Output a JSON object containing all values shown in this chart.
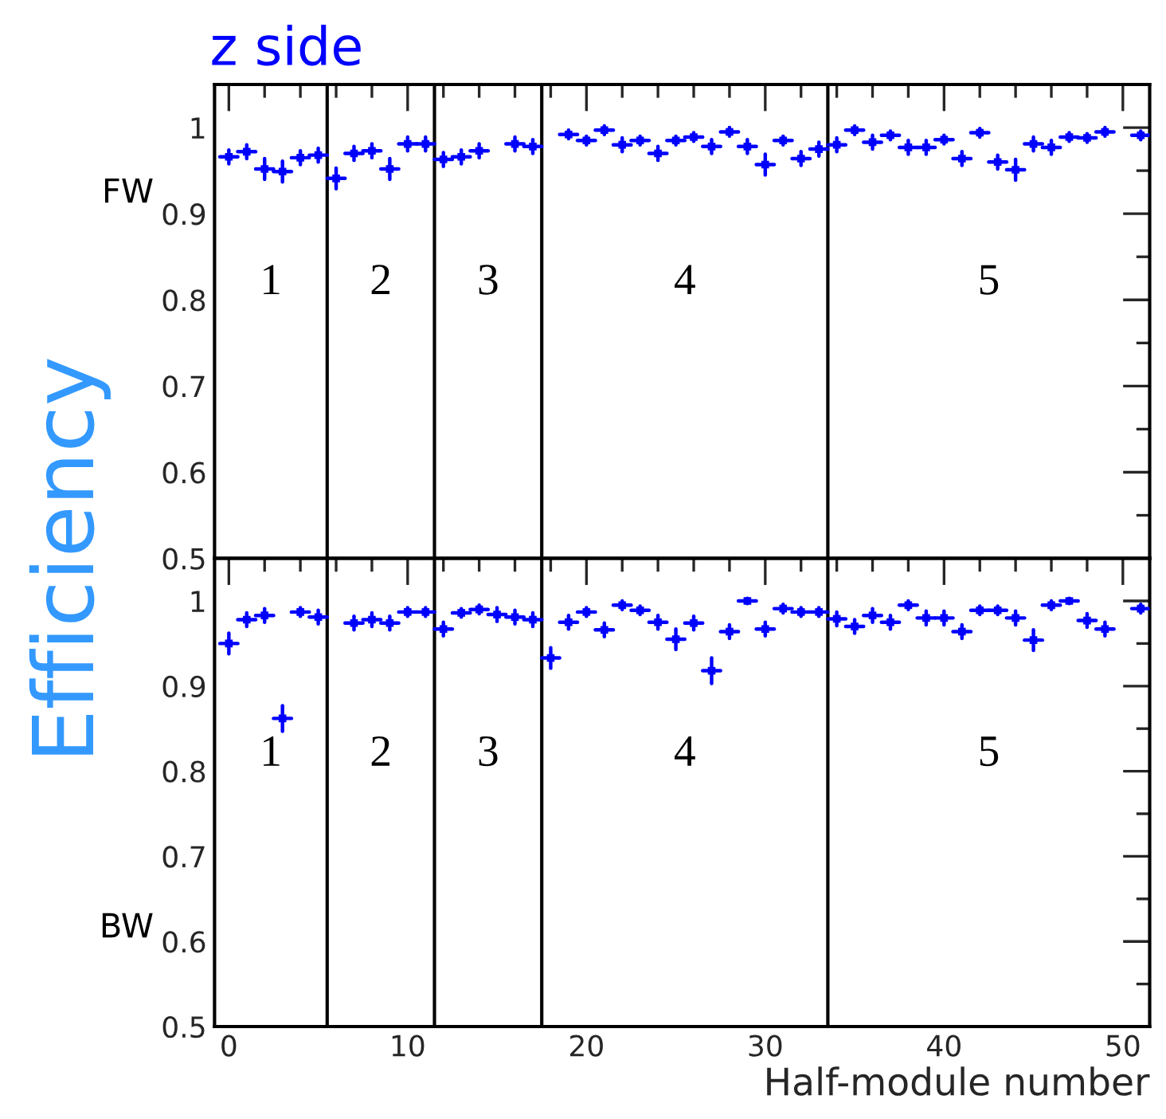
{
  "chart_data": [
    {
      "type": "scatter",
      "title": "z side",
      "ylabel": "Efficiency",
      "marker": "square",
      "grid": false,
      "tick_labels": "y",
      "xlim": [
        -0.8,
        51.5
      ],
      "ylim": [
        0.5,
        1.05
      ],
      "xticks": [
        0,
        {
          "value": 2,
          "label": null
        },
        {
          "value": 4,
          "label": null
        },
        {
          "value": 6,
          "label": null
        },
        {
          "value": 8,
          "label": null
        },
        10,
        {
          "value": 12,
          "label": null
        },
        {
          "value": 14,
          "label": null
        },
        {
          "value": 16,
          "label": null
        },
        {
          "value": 18,
          "label": null
        },
        20,
        {
          "value": 22,
          "label": null
        },
        {
          "value": 24,
          "label": null
        },
        {
          "value": 26,
          "label": null
        },
        {
          "value": 28,
          "label": null
        },
        30,
        {
          "value": 32,
          "label": null
        },
        {
          "value": 34,
          "label": null
        },
        {
          "value": 36,
          "label": null
        },
        {
          "value": 38,
          "label": null
        },
        40,
        {
          "value": 42,
          "label": null
        },
        {
          "value": 44,
          "label": null
        },
        {
          "value": 46,
          "label": null
        },
        {
          "value": 48,
          "label": null
        },
        50
      ],
      "yticks": [
        0.5,
        {
          "value": 0.55,
          "label": null
        },
        0.6,
        {
          "value": 0.65,
          "label": null
        },
        0.7,
        {
          "value": 0.75,
          "label": null
        },
        0.8,
        {
          "value": 0.85,
          "label": null
        },
        0.9,
        {
          "value": 0.95,
          "label": null
        },
        1
      ],
      "x": [
        0,
        1,
        2,
        3,
        4,
        5,
        6,
        7,
        8,
        9,
        10,
        11,
        12,
        13,
        14,
        15,
        16,
        17,
        18,
        19,
        20,
        21,
        22,
        23,
        24,
        25,
        26,
        27,
        28,
        29,
        30,
        31,
        32,
        33,
        34,
        35,
        36,
        37,
        38,
        39,
        40,
        41,
        42,
        43,
        44,
        45,
        46,
        47,
        48,
        49,
        50,
        51
      ],
      "series": [
        {
          "color": "#0000ff",
          "values": [
            0.966,
            0.972,
            0.952,
            0.949,
            0.965,
            0.968,
            0.941,
            0.97,
            0.973,
            0.952,
            0.981,
            0.981,
            0.963,
            0.966,
            0.973,
            null,
            0.981,
            0.978,
            null,
            0.992,
            0.985,
            0.997,
            0.98,
            0.985,
            0.97,
            0.985,
            0.989,
            0.978,
            0.995,
            0.978,
            0.957,
            0.985,
            0.964,
            0.975,
            0.98,
            0.997,
            0.983,
            0.991,
            0.977,
            0.977,
            0.986,
            0.964,
            0.994,
            0.96,
            0.951,
            0.981,
            0.977,
            0.989,
            0.988,
            0.995,
            null,
            0.991
          ],
          "errors": [
            0.008,
            0.008,
            0.012,
            0.012,
            0.008,
            0.008,
            0.012,
            0.008,
            0.008,
            0.012,
            0.008,
            0.008,
            0.008,
            0.008,
            0.008,
            null,
            0.008,
            0.008,
            null,
            0.005,
            0.005,
            0.005,
            0.008,
            0.005,
            0.008,
            0.005,
            0.005,
            0.008,
            0.005,
            0.008,
            0.012,
            0.005,
            0.008,
            0.008,
            0.008,
            0.005,
            0.008,
            0.005,
            0.008,
            0.008,
            0.005,
            0.008,
            0.005,
            0.008,
            0.012,
            0.008,
            0.008,
            0.005,
            0.005,
            0.005,
            null,
            0.005
          ],
          "xerrors": [
            0.5,
            0.5,
            0.5,
            0.5,
            0.5,
            0.5,
            0.5,
            0.5,
            0.5,
            0.5,
            0.5,
            0.5,
            0.5,
            0.5,
            0.5,
            null,
            0.5,
            0.5,
            null,
            0.5,
            0.5,
            0.5,
            0.5,
            0.5,
            0.5,
            0.5,
            0.5,
            0.5,
            0.5,
            0.5,
            0.5,
            0.5,
            0.5,
            0.5,
            0.5,
            0.5,
            0.5,
            0.5,
            0.5,
            0.5,
            0.5,
            0.5,
            0.5,
            0.5,
            0.5,
            0.5,
            0.5,
            0.5,
            0.5,
            0.5,
            null,
            0.5
          ]
        }
      ],
      "ref_lines": [
        {
          "axis": "x",
          "value": 5.5,
          "color": "#000000"
        },
        {
          "axis": "x",
          "value": 11.5,
          "color": "#000000"
        },
        {
          "axis": "x",
          "value": 17.5,
          "color": "#000000"
        },
        {
          "axis": "x",
          "value": 33.5,
          "color": "#000000"
        }
      ],
      "annotations": [
        "FW",
        "1",
        "2",
        "3",
        "4",
        "5"
      ]
    },
    {
      "type": "scatter",
      "xlabel": "Half-module number",
      "marker": "square",
      "grid": false,
      "xlim": [
        -0.8,
        51.5
      ],
      "ylim": [
        0.5,
        1.05
      ],
      "xticks": [
        0,
        {
          "value": 2,
          "label": null
        },
        {
          "value": 4,
          "label": null
        },
        {
          "value": 6,
          "label": null
        },
        {
          "value": 8,
          "label": null
        },
        10,
        {
          "value": 12,
          "label": null
        },
        {
          "value": 14,
          "label": null
        },
        {
          "value": 16,
          "label": null
        },
        {
          "value": 18,
          "label": null
        },
        20,
        {
          "value": 22,
          "label": null
        },
        {
          "value": 24,
          "label": null
        },
        {
          "value": 26,
          "label": null
        },
        {
          "value": 28,
          "label": null
        },
        30,
        {
          "value": 32,
          "label": null
        },
        {
          "value": 34,
          "label": null
        },
        {
          "value": 36,
          "label": null
        },
        {
          "value": 38,
          "label": null
        },
        40,
        {
          "value": 42,
          "label": null
        },
        {
          "value": 44,
          "label": null
        },
        {
          "value": 46,
          "label": null
        },
        {
          "value": 48,
          "label": null
        },
        50
      ],
      "yticks": [
        0.5,
        {
          "value": 0.55,
          "label": null
        },
        0.6,
        {
          "value": 0.65,
          "label": null
        },
        0.7,
        {
          "value": 0.75,
          "label": null
        },
        0.8,
        {
          "value": 0.85,
          "label": null
        },
        0.9,
        {
          "value": 0.95,
          "label": null
        },
        1
      ],
      "x": [
        0,
        1,
        2,
        3,
        4,
        5,
        6,
        7,
        8,
        9,
        10,
        11,
        12,
        13,
        14,
        15,
        16,
        17,
        18,
        19,
        20,
        21,
        22,
        23,
        24,
        25,
        26,
        27,
        28,
        29,
        30,
        31,
        32,
        33,
        34,
        35,
        36,
        37,
        38,
        39,
        40,
        41,
        42,
        43,
        44,
        45,
        46,
        47,
        48,
        49,
        50,
        51
      ],
      "series": [
        {
          "color": "#0000ff",
          "values": [
            0.95,
            0.978,
            0.983,
            0.862,
            0.987,
            0.981,
            null,
            0.974,
            0.978,
            0.974,
            0.987,
            0.987,
            0.967,
            0.986,
            0.99,
            0.984,
            0.981,
            0.978,
            0.933,
            0.975,
            0.987,
            0.966,
            0.995,
            0.989,
            0.975,
            0.955,
            0.974,
            0.918,
            0.964,
            1.0,
            0.967,
            0.991,
            0.987,
            0.987,
            0.979,
            0.97,
            0.983,
            0.975,
            0.995,
            0.98,
            0.98,
            0.964,
            0.989,
            0.989,
            0.98,
            0.954,
            0.995,
            1.0,
            0.977,
            0.967,
            null,
            0.991
          ],
          "errors": [
            0.012,
            0.008,
            0.008,
            0.015,
            0.005,
            0.008,
            null,
            0.008,
            0.008,
            0.008,
            0.005,
            0.005,
            0.008,
            0.005,
            0.005,
            0.008,
            0.008,
            0.008,
            0.012,
            0.008,
            0.005,
            0.008,
            0.005,
            0.005,
            0.008,
            0.012,
            0.008,
            0.015,
            0.008,
            0.003,
            0.008,
            0.005,
            0.005,
            0.005,
            0.008,
            0.008,
            0.008,
            0.008,
            0.005,
            0.008,
            0.008,
            0.008,
            0.005,
            0.005,
            0.008,
            0.012,
            0.005,
            0.003,
            0.008,
            0.008,
            null,
            0.005
          ],
          "xerrors": [
            0.5,
            0.5,
            0.5,
            0.5,
            0.5,
            0.5,
            null,
            0.5,
            0.5,
            0.5,
            0.5,
            0.5,
            0.5,
            0.5,
            0.5,
            0.5,
            0.5,
            0.5,
            0.5,
            0.5,
            0.5,
            0.5,
            0.5,
            0.5,
            0.5,
            0.5,
            0.5,
            0.5,
            0.5,
            0.5,
            0.5,
            0.5,
            0.5,
            0.5,
            0.5,
            0.5,
            0.5,
            0.5,
            0.5,
            0.5,
            0.5,
            0.5,
            0.5,
            0.5,
            0.5,
            0.5,
            0.5,
            0.5,
            0.5,
            0.5,
            null,
            0.5
          ]
        }
      ],
      "ref_lines": [
        {
          "axis": "x",
          "value": 5.5,
          "color": "#000000"
        },
        {
          "axis": "x",
          "value": 11.5,
          "color": "#000000"
        },
        {
          "axis": "x",
          "value": 17.5,
          "color": "#000000"
        },
        {
          "axis": "x",
          "value": 33.5,
          "color": "#000000"
        }
      ],
      "annotations": [
        "BW",
        "1",
        "2",
        "3",
        "4",
        "5"
      ]
    }
  ]
}
